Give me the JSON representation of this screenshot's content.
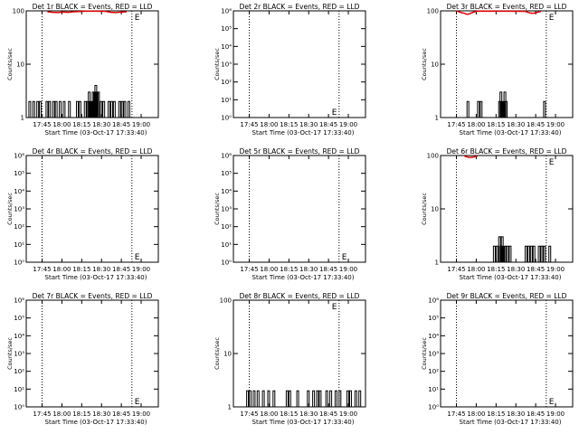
{
  "chart_data": [
    {
      "type": "line",
      "title": "Det 1r BLACK = Events, RED = LLD",
      "xlabel": "Start Time (03-Oct-17 17:33:40)",
      "ylabel": "Counts/sec",
      "scale": "log",
      "ylim": [
        1,
        100
      ],
      "yticks": [
        {
          "v": 1,
          "t": "1"
        },
        {
          "v": 10,
          "t": "10"
        },
        {
          "v": 100,
          "t": "100"
        }
      ],
      "xtick_labels": [
        "17:45",
        "18:00",
        "18:15",
        "18:30",
        "18:45",
        "19:00"
      ],
      "xlim": [
        0,
        100
      ],
      "xticks": [
        12,
        27,
        42,
        57,
        72,
        87
      ],
      "vlines": [
        12,
        80
      ],
      "marker_label": "E",
      "marker_x": 82,
      "marker_y": 100,
      "events": [
        [
          2,
          2
        ],
        [
          5,
          2
        ],
        [
          8,
          2
        ],
        [
          10,
          2
        ],
        [
          15,
          2
        ],
        [
          17,
          2
        ],
        [
          20,
          2
        ],
        [
          22,
          2
        ],
        [
          25,
          2
        ],
        [
          28,
          2
        ],
        [
          32,
          2
        ],
        [
          38,
          2
        ],
        [
          40,
          2
        ],
        [
          44,
          2
        ],
        [
          46,
          2
        ],
        [
          47,
          3
        ],
        [
          48,
          2
        ],
        [
          49,
          2
        ],
        [
          50,
          3
        ],
        [
          51,
          3
        ],
        [
          52,
          4
        ],
        [
          53,
          3
        ],
        [
          54,
          3
        ],
        [
          56,
          2
        ],
        [
          58,
          2
        ],
        [
          62,
          2
        ],
        [
          64,
          2
        ],
        [
          66,
          2
        ],
        [
          70,
          2
        ],
        [
          72,
          2
        ],
        [
          74,
          2
        ],
        [
          77,
          2
        ]
      ],
      "lld": [
        [
          16,
          96
        ],
        [
          20,
          94
        ],
        [
          24,
          93
        ],
        [
          28,
          95
        ],
        [
          32,
          94
        ],
        [
          36,
          96
        ],
        [
          40,
          97
        ],
        [
          46,
          99
        ],
        [
          60,
          98
        ],
        [
          64,
          94
        ],
        [
          68,
          93
        ],
        [
          72,
          95
        ],
        [
          76,
          96
        ]
      ]
    },
    {
      "type": "line",
      "title": "Det 2r BLACK = Events, RED = LLD",
      "xlabel": "Start Time (03-Oct-17 17:33:40)",
      "ylabel": "Counts/sec",
      "scale": "log",
      "ylim": [
        1,
        1000000
      ],
      "yticks": [
        {
          "v": 1,
          "t": "10⁰"
        },
        {
          "v": 10,
          "t": "10¹"
        },
        {
          "v": 100,
          "t": "10²"
        },
        {
          "v": 1000,
          "t": "10³"
        },
        {
          "v": 10000,
          "t": "10⁴"
        },
        {
          "v": 100000,
          "t": "10⁵"
        },
        {
          "v": 1000000,
          "t": "10⁶"
        }
      ],
      "xtick_labels": [
        "17:45",
        "18:00",
        "18:15",
        "18:30",
        "18:45",
        "19:00"
      ],
      "xlim": [
        0,
        100
      ],
      "xticks": [
        12,
        27,
        42,
        57,
        72,
        87
      ],
      "vlines": [
        12,
        80
      ],
      "marker_label": "E",
      "marker_x": 80,
      "marker_y": 1,
      "marker_left": true,
      "events": [],
      "lld": []
    },
    {
      "type": "line",
      "title": "Det 3r BLACK = Events, RED = LLD",
      "xlabel": "Start Time (03-Oct-17 17:33:40)",
      "ylabel": "Counts/sec",
      "scale": "log",
      "ylim": [
        1,
        100
      ],
      "yticks": [
        {
          "v": 1,
          "t": "1"
        },
        {
          "v": 10,
          "t": "10"
        },
        {
          "v": 100,
          "t": "100"
        }
      ],
      "xtick_labels": [
        "17:45",
        "18:00",
        "18:15",
        "18:30",
        "18:45",
        "19:00"
      ],
      "xlim": [
        0,
        100
      ],
      "xticks": [
        12,
        27,
        42,
        57,
        72,
        87
      ],
      "vlines": [
        12,
        80
      ],
      "marker_label": "E",
      "marker_x": 82,
      "marker_y": 100,
      "events": [
        [
          20,
          2
        ],
        [
          28,
          2
        ],
        [
          30,
          2
        ],
        [
          44,
          2
        ],
        [
          45,
          3
        ],
        [
          46,
          2
        ],
        [
          47,
          2
        ],
        [
          48,
          3
        ],
        [
          49,
          2
        ],
        [
          78,
          2
        ]
      ],
      "lld": [
        [
          12,
          99
        ],
        [
          14,
          96
        ],
        [
          16,
          92
        ],
        [
          18,
          90
        ],
        [
          20,
          86
        ],
        [
          22,
          88
        ],
        [
          24,
          93
        ],
        [
          26,
          96
        ],
        [
          28,
          99
        ],
        [
          64,
          98
        ],
        [
          66,
          94
        ],
        [
          68,
          91
        ],
        [
          70,
          90
        ],
        [
          72,
          92
        ],
        [
          74,
          95
        ],
        [
          76,
          98
        ]
      ]
    },
    {
      "type": "line",
      "title": "Det 4r BLACK = Events, RED = LLD",
      "xlabel": "Start Time (03-Oct-17 17:33:40)",
      "ylabel": "Counts/sec",
      "scale": "log",
      "ylim": [
        1,
        1000000
      ],
      "yticks": [
        {
          "v": 1,
          "t": "10⁰"
        },
        {
          "v": 10,
          "t": "10¹"
        },
        {
          "v": 100,
          "t": "10²"
        },
        {
          "v": 1000,
          "t": "10³"
        },
        {
          "v": 10000,
          "t": "10⁴"
        },
        {
          "v": 100000,
          "t": "10⁵"
        },
        {
          "v": 1000000,
          "t": "10⁶"
        }
      ],
      "xtick_labels": [
        "17:45",
        "18:00",
        "18:15",
        "18:30",
        "18:45",
        "19:00"
      ],
      "xlim": [
        0,
        100
      ],
      "xticks": [
        12,
        27,
        42,
        57,
        72,
        87
      ],
      "vlines": [
        12,
        80
      ],
      "marker_label": "E",
      "marker_x": 82,
      "marker_y": 1,
      "events": [],
      "lld": []
    },
    {
      "type": "line",
      "title": "Det 5r BLACK = Events, RED = LLD",
      "xlabel": "Start Time (03-Oct-17 17:33:40)",
      "ylabel": "Counts/sec",
      "scale": "log",
      "ylim": [
        1,
        1000000
      ],
      "yticks": [
        {
          "v": 1,
          "t": "10⁰"
        },
        {
          "v": 10,
          "t": "10¹"
        },
        {
          "v": 100,
          "t": "10²"
        },
        {
          "v": 1000,
          "t": "10³"
        },
        {
          "v": 10000,
          "t": "10⁴"
        },
        {
          "v": 100000,
          "t": "10⁵"
        },
        {
          "v": 1000000,
          "t": "10⁶"
        }
      ],
      "xtick_labels": [
        "17:45",
        "18:00",
        "18:15",
        "18:30",
        "18:45",
        "19:00"
      ],
      "xlim": [
        0,
        100
      ],
      "xticks": [
        12,
        27,
        42,
        57,
        72,
        87
      ],
      "vlines": [
        12,
        80
      ],
      "marker_label": "E",
      "marker_x": 82,
      "marker_y": 1,
      "events": [],
      "lld": []
    },
    {
      "type": "line",
      "title": "Det 6r BLACK = Events, RED = LLD",
      "xlabel": "Start Time (03-Oct-17 17:33:40)",
      "ylabel": "Counts/sec",
      "scale": "log",
      "ylim": [
        1,
        100
      ],
      "yticks": [
        {
          "v": 1,
          "t": "1"
        },
        {
          "v": 10,
          "t": "10"
        },
        {
          "v": 100,
          "t": "100"
        }
      ],
      "xtick_labels": [
        "17:45",
        "18:00",
        "18:15",
        "18:30",
        "18:45",
        "19:00"
      ],
      "xlim": [
        0,
        100
      ],
      "xticks": [
        12,
        27,
        42,
        57,
        72,
        87
      ],
      "vlines": [
        12,
        80
      ],
      "marker_label": "E",
      "marker_x": 82,
      "marker_y": 100,
      "events": [
        [
          40,
          2
        ],
        [
          42,
          2
        ],
        [
          44,
          3
        ],
        [
          45,
          2
        ],
        [
          46,
          3
        ],
        [
          47,
          2
        ],
        [
          48,
          2
        ],
        [
          50,
          2
        ],
        [
          52,
          2
        ],
        [
          64,
          2
        ],
        [
          66,
          2
        ],
        [
          68,
          2
        ],
        [
          70,
          2
        ],
        [
          74,
          2
        ],
        [
          76,
          2
        ],
        [
          78,
          2
        ],
        [
          82,
          2
        ]
      ],
      "lld": [
        [
          18,
          98
        ],
        [
          20,
          94
        ],
        [
          22,
          92
        ],
        [
          24,
          93
        ],
        [
          26,
          95
        ],
        [
          28,
          98
        ]
      ]
    },
    {
      "type": "line",
      "title": "Det 7r BLACK = Events, RED = LLD",
      "xlabel": "Start Time (03-Oct-17 17:33:40)",
      "ylabel": "Counts/sec",
      "scale": "log",
      "ylim": [
        1,
        1000000
      ],
      "yticks": [
        {
          "v": 1,
          "t": "10⁰"
        },
        {
          "v": 10,
          "t": "10¹"
        },
        {
          "v": 100,
          "t": "10²"
        },
        {
          "v": 1000,
          "t": "10³"
        },
        {
          "v": 10000,
          "t": "10⁴"
        },
        {
          "v": 100000,
          "t": "10⁵"
        },
        {
          "v": 1000000,
          "t": "10⁶"
        }
      ],
      "xtick_labels": [
        "17:45",
        "18:00",
        "18:15",
        "18:30",
        "18:45",
        "19:00"
      ],
      "xlim": [
        0,
        100
      ],
      "xticks": [
        12,
        27,
        42,
        57,
        72,
        87
      ],
      "vlines": [
        12,
        80
      ],
      "marker_label": "E",
      "marker_x": 82,
      "marker_y": 1,
      "events": [],
      "lld": []
    },
    {
      "type": "line",
      "title": "Det 8r BLACK = Events, RED = LLD",
      "xlabel": "Start Time (03-Oct-17 17:33:40)",
      "ylabel": "Counts/sec",
      "scale": "log",
      "ylim": [
        1,
        100
      ],
      "yticks": [
        {
          "v": 1,
          "t": "1"
        },
        {
          "v": 10,
          "t": "10"
        },
        {
          "v": 100,
          "t": "100"
        }
      ],
      "xtick_labels": [
        "17:45",
        "18:00",
        "18:15",
        "18:30",
        "18:45",
        "19:00"
      ],
      "xlim": [
        0,
        100
      ],
      "xticks": [
        12,
        27,
        42,
        57,
        72,
        87
      ],
      "vlines": [
        12,
        80
      ],
      "marker_label": "E",
      "marker_x": 80,
      "marker_y": 100,
      "marker_left": true,
      "events": [
        [
          10,
          2
        ],
        [
          12,
          2
        ],
        [
          15,
          2
        ],
        [
          18,
          2
        ],
        [
          22,
          2
        ],
        [
          26,
          2
        ],
        [
          30,
          2
        ],
        [
          40,
          2
        ],
        [
          42,
          2
        ],
        [
          48,
          2
        ],
        [
          56,
          2
        ],
        [
          60,
          2
        ],
        [
          63,
          2
        ],
        [
          65,
          2
        ],
        [
          70,
          2
        ],
        [
          73,
          2
        ],
        [
          77,
          2
        ],
        [
          80,
          2
        ],
        [
          86,
          2
        ],
        [
          88,
          2
        ],
        [
          92,
          2
        ],
        [
          95,
          2
        ]
      ],
      "lld": []
    },
    {
      "type": "line",
      "title": "Det 9r BLACK = Events, RED = LLD",
      "xlabel": "Start Time (03-Oct-17 17:33:40)",
      "ylabel": "Counts/sec",
      "scale": "log",
      "ylim": [
        1,
        1000000
      ],
      "yticks": [
        {
          "v": 1,
          "t": "10⁰"
        },
        {
          "v": 10,
          "t": "10¹"
        },
        {
          "v": 100,
          "t": "10²"
        },
        {
          "v": 1000,
          "t": "10³"
        },
        {
          "v": 10000,
          "t": "10⁴"
        },
        {
          "v": 100000,
          "t": "10⁵"
        },
        {
          "v": 1000000,
          "t": "10⁶"
        }
      ],
      "xtick_labels": [
        "17:45",
        "18:00",
        "18:15",
        "18:30",
        "18:45",
        "19:00"
      ],
      "xlim": [
        0,
        100
      ],
      "xticks": [
        12,
        27,
        42,
        57,
        72,
        87
      ],
      "vlines": [
        12,
        80
      ],
      "marker_label": "E",
      "marker_x": 82,
      "marker_y": 1,
      "events": [],
      "lld": []
    }
  ]
}
